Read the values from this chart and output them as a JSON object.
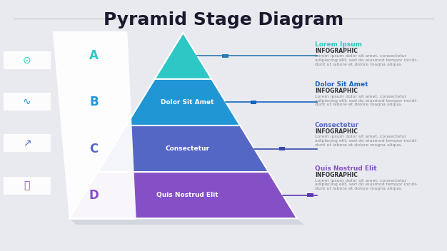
{
  "title": "Pyramid Stage Diagram",
  "title_fontsize": 18,
  "title_color": "#1a1a2e",
  "background_color": "#e8eaf0",
  "levels": [
    {
      "label": "A",
      "text": "",
      "color_left": "#00c9c8",
      "color_right": "#00bcd4",
      "label_color": "#00c9c8",
      "connector_color": "#2979b0",
      "info_title": "Lorem Ipsum",
      "info_title_color": "#00bcd4",
      "info_sub": "INFOGRAPHIC",
      "info_body": "Lorem ipsum dolor sit amet, consectetur\nadipiscing elit, sed do eiusmod tempor incidi-\ndunt ut labore et dolore magna aliqua."
    },
    {
      "label": "B",
      "text": "Dolor Sit Amet",
      "color_left": "#2196f3",
      "color_right": "#1976d2",
      "label_color": "#2196f3",
      "connector_color": "#2979b0",
      "info_title": "Dolor Sit Amet",
      "info_title_color": "#1976d2",
      "info_sub": "INFOGRAPHIC",
      "info_body": "Lorem ipsum dolor sit amet, consectetur\nadipiscing elit, sed do eiusmod tempor incidi-\ndunt ut labore et dolore magna aliqua."
    },
    {
      "label": "C",
      "text": "Consectetur",
      "color_left": "#5c6bc0",
      "color_right": "#3f51b5",
      "label_color": "#5c6bc0",
      "connector_color": "#3949ab",
      "info_title": "Consectetur",
      "info_title_color": "#5c6bc0",
      "info_sub": "INFOGRAPHIC",
      "info_body": "Lorem ipsum dolor sit amet, consectetur\nadipiscing elit, sed do eiusmod tempor incidi-\ndunt ut labore et dolore magna aliqua."
    },
    {
      "label": "D",
      "text": "Quis Nostrud Elit",
      "color_left": "#7e57c2",
      "color_right": "#9c27b0",
      "label_color": "#7e57c2",
      "connector_color": "#5e35b1",
      "info_title": "Quis Nostrud Elit",
      "info_title_color": "#7e57c2",
      "info_sub": "INFOGRAPHIC",
      "info_body": "Lorem ipsum dolor sit amet, consectetur\nadipiscing elit, sed do eiusmod tempor incidi-\ndunt ut labore et dolore magna aliqua."
    }
  ],
  "left_icons": [
    {
      "symbol": "◯",
      "color": "#00bcd4"
    },
    {
      "symbol": "∿",
      "color": "#2196f3"
    },
    {
      "symbol": "↗",
      "color": "#5c6bc0"
    },
    {
      "symbol": "💡",
      "color": "#7e57c2"
    }
  ]
}
